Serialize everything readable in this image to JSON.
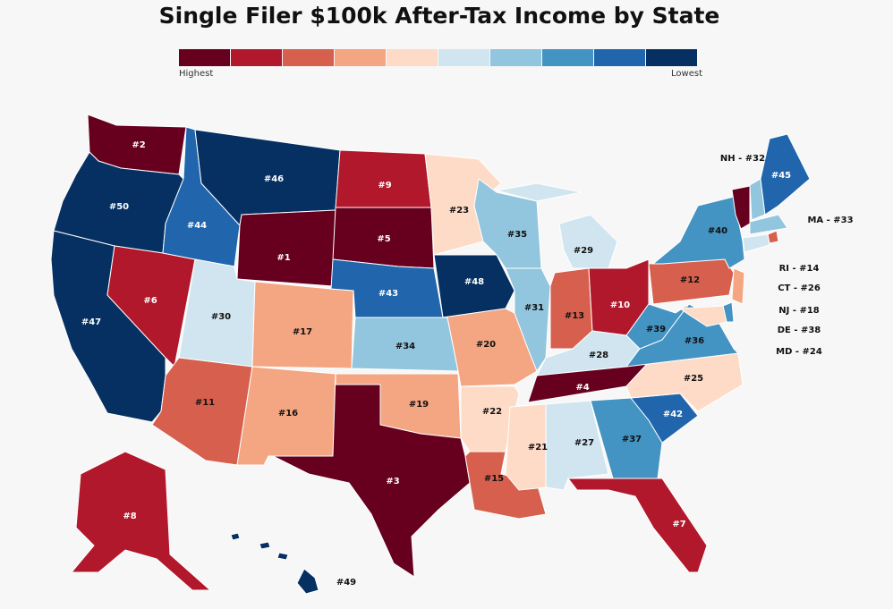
{
  "title": "Single Filer $100k After-Tax Income by State",
  "legend": {
    "colors": [
      "#67001f",
      "#b2182b",
      "#d6604d",
      "#f4a582",
      "#fddbc7",
      "#d1e5f0",
      "#92c5de",
      "#4393c3",
      "#2166ac",
      "#053061"
    ],
    "low_label": "Highest",
    "high_label": "Lowest"
  },
  "states": [
    {
      "label": "#2",
      "color": "#67001f"
    },
    {
      "label": "#50",
      "color": "#053061"
    },
    {
      "label": "#47",
      "color": "#053061"
    },
    {
      "label": "#6",
      "color": "#b2182b"
    },
    {
      "label": "#44",
      "color": "#2166ac"
    },
    {
      "label": "#46",
      "color": "#053061"
    },
    {
      "label": "#1",
      "color": "#67001f"
    },
    {
      "label": "#30",
      "color": "#d1e5f0"
    },
    {
      "label": "#17",
      "color": "#f4a582"
    },
    {
      "label": "#11",
      "color": "#d6604d"
    },
    {
      "label": "#16",
      "color": "#f4a582"
    },
    {
      "label": "#9",
      "color": "#b2182b"
    },
    {
      "label": "#5",
      "color": "#67001f"
    },
    {
      "label": "#43",
      "color": "#2166ac"
    },
    {
      "label": "#34",
      "color": "#92c5de"
    },
    {
      "label": "#19",
      "color": "#f4a582"
    },
    {
      "label": "#3",
      "color": "#67001f"
    },
    {
      "label": "#23",
      "color": "#fddbc7"
    },
    {
      "label": "#48",
      "color": "#053061"
    },
    {
      "label": "#20",
      "color": "#f4a582"
    },
    {
      "label": "#22",
      "color": "#fddbc7"
    },
    {
      "label": "#15",
      "color": "#d6604d"
    },
    {
      "label": "#35",
      "color": "#92c5de"
    },
    {
      "label": "#31",
      "color": "#92c5de"
    },
    {
      "label": "#29",
      "color": "#d1e5f0"
    },
    {
      "label": "#13",
      "color": "#d6604d"
    },
    {
      "label": "#10",
      "color": "#b2182b"
    },
    {
      "label": "#28",
      "color": "#d1e5f0"
    },
    {
      "label": "#4",
      "color": "#67001f"
    },
    {
      "label": "#21",
      "color": "#fddbc7"
    },
    {
      "label": "#27",
      "color": "#d1e5f0"
    },
    {
      "label": "#37",
      "color": "#4393c3"
    },
    {
      "label": "#7",
      "color": "#b2182b"
    },
    {
      "label": "#42",
      "color": "#2166ac"
    },
    {
      "label": "#25",
      "color": "#fddbc7"
    },
    {
      "label": "#36",
      "color": "#4393c3"
    },
    {
      "label": "#39",
      "color": "#4393c3"
    },
    {
      "label": "#12",
      "color": "#d6604d"
    },
    {
      "label": "#40",
      "color": "#4393c3"
    },
    {
      "label": null,
      "color": "#67001f"
    },
    {
      "label": "NH - #32",
      "color": "#92c5de"
    },
    {
      "label": "#45",
      "color": "#2166ac"
    },
    {
      "label": "MA - #33",
      "color": "#92c5de"
    },
    {
      "label": "RI - #14",
      "color": "#d6604d"
    },
    {
      "label": "CT - #26",
      "color": "#d1e5f0"
    },
    {
      "label": "NJ - #18",
      "color": "#f4a582"
    },
    {
      "label": "DE - #38",
      "color": "#4393c3"
    },
    {
      "label": "MD - #24",
      "color": "#fddbc7"
    },
    {
      "label": "#8",
      "color": "#b2182b"
    },
    {
      "label": "#49",
      "color": "#053061"
    }
  ]
}
